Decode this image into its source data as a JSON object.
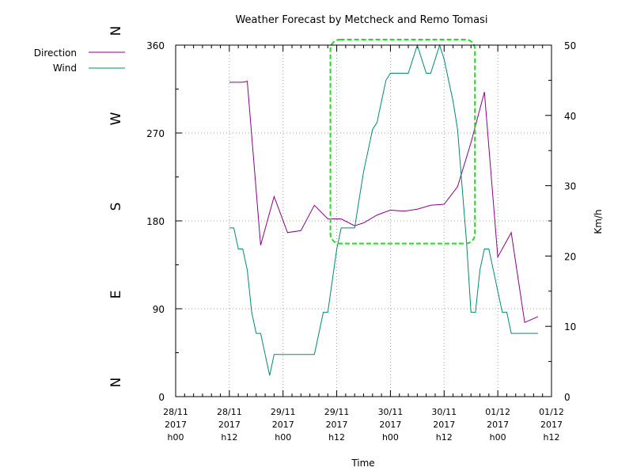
{
  "chart_data": {
    "type": "line",
    "title": "Weather Forecast by Metcheck and Remo Tomasi",
    "xlabel": "Time",
    "ylabel_right": "Km/h",
    "y_left": {
      "range": [
        0,
        360
      ],
      "ticks": [
        "0",
        "90",
        "180",
        "270",
        "360"
      ]
    },
    "y_right": {
      "range": [
        0,
        50
      ],
      "ticks": [
        "0",
        "10",
        "20",
        "30",
        "40",
        "50"
      ]
    },
    "compass_labels": [
      "N",
      "E",
      "S",
      "W",
      "N"
    ],
    "x_range_hours": [
      0,
      84
    ],
    "x_ticks": [
      {
        "hours": 0,
        "date": "28/11",
        "year": "2017",
        "hour": "h00"
      },
      {
        "hours": 12,
        "date": "28/11",
        "year": "2017",
        "hour": "h12"
      },
      {
        "hours": 24,
        "date": "29/11",
        "year": "2017",
        "hour": "h00"
      },
      {
        "hours": 36,
        "date": "29/11",
        "year": "2017",
        "hour": "h12"
      },
      {
        "hours": 48,
        "date": "30/11",
        "year": "2017",
        "hour": "h00"
      },
      {
        "hours": 60,
        "date": "30/11",
        "year": "2017",
        "hour": "h12"
      },
      {
        "hours": 72,
        "date": "01/12",
        "year": "2017",
        "hour": "h00"
      },
      {
        "hours": 84,
        "date": "01/12",
        "year": "2017",
        "hour": "h12"
      }
    ],
    "grid": true,
    "legend_position": "top-left",
    "series": [
      {
        "name": "Direction",
        "axis": "left",
        "color": "#8b008b",
        "points": [
          [
            12,
            322
          ],
          [
            15,
            322
          ],
          [
            16,
            323
          ],
          [
            19,
            155
          ],
          [
            22,
            205
          ],
          [
            25,
            168
          ],
          [
            28,
            170
          ],
          [
            31,
            196
          ],
          [
            34,
            182
          ],
          [
            37,
            182
          ],
          [
            40,
            175
          ],
          [
            42,
            178
          ],
          [
            45,
            186
          ],
          [
            48,
            191
          ],
          [
            51,
            190
          ],
          [
            54,
            192
          ],
          [
            57,
            196
          ],
          [
            60,
            197
          ],
          [
            63,
            215
          ],
          [
            66,
            260
          ],
          [
            69,
            312
          ],
          [
            72,
            143
          ],
          [
            75,
            168
          ],
          [
            78,
            76
          ],
          [
            81,
            82
          ]
        ]
      },
      {
        "name": "Wind",
        "axis": "right",
        "color": "#008b74",
        "points": [
          [
            12,
            24
          ],
          [
            13,
            24
          ],
          [
            14,
            21
          ],
          [
            15,
            21
          ],
          [
            16,
            18
          ],
          [
            17,
            12
          ],
          [
            18,
            9
          ],
          [
            19,
            9
          ],
          [
            20,
            6
          ],
          [
            21,
            3
          ],
          [
            22,
            6
          ],
          [
            23,
            6
          ],
          [
            24,
            6
          ],
          [
            28,
            6
          ],
          [
            31,
            6
          ],
          [
            32,
            9
          ],
          [
            33,
            12
          ],
          [
            34,
            12
          ],
          [
            36,
            21
          ],
          [
            37,
            24
          ],
          [
            40,
            24
          ],
          [
            41,
            28
          ],
          [
            42,
            32
          ],
          [
            43,
            35
          ],
          [
            44,
            38
          ],
          [
            45,
            39
          ],
          [
            46,
            42
          ],
          [
            47,
            45
          ],
          [
            48,
            46
          ],
          [
            52,
            46
          ],
          [
            53,
            48
          ],
          [
            54,
            50
          ],
          [
            55,
            48
          ],
          [
            56,
            46
          ],
          [
            57,
            46
          ],
          [
            58,
            48
          ],
          [
            59,
            50
          ],
          [
            60,
            48
          ],
          [
            61,
            45
          ],
          [
            62,
            42
          ],
          [
            63,
            38
          ],
          [
            64,
            30
          ],
          [
            65,
            22
          ],
          [
            66,
            12
          ],
          [
            67,
            12
          ],
          [
            68,
            18
          ],
          [
            69,
            21
          ],
          [
            70,
            21
          ],
          [
            71,
            18
          ],
          [
            72,
            15
          ],
          [
            73,
            12
          ],
          [
            74,
            12
          ],
          [
            75,
            9
          ],
          [
            78,
            9
          ],
          [
            81,
            9
          ]
        ]
      }
    ],
    "annotation": {
      "type": "highlight-box",
      "x_range": [
        36,
        66
      ],
      "y_range": [
        22,
        50
      ],
      "color": "#22dd22"
    }
  }
}
